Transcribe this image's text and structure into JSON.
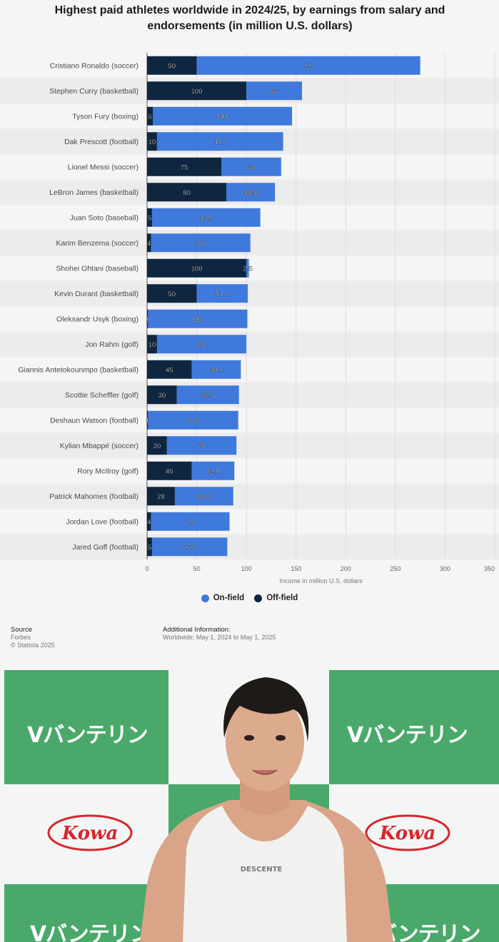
{
  "header": {
    "title": "Highest paid athletes worldwide in 2024/25, by earnings from salary and endorsements (in million U.S. dollars)"
  },
  "chart_data": {
    "type": "bar",
    "orientation": "horizontal",
    "stacked": true,
    "title": "Highest paid athletes worldwide in 2024/25, by earnings from salary and endorsements (in million U.S. dollars)",
    "xlabel": "Income in million U.S. dollars",
    "ylabel": "",
    "xlim": [
      0,
      350
    ],
    "xticks": [
      0,
      50,
      100,
      150,
      200,
      250,
      300,
      350
    ],
    "grid": true,
    "legend_position": "bottom",
    "categories": [
      "Cristiano Ronaldo (soccer)",
      "Stephen Curry (basketball)",
      "Tyson Fury (boxing)",
      "Dak Prescott (football)",
      "Lionel Messi (soccer)",
      "LeBron James (basketball)",
      "Juan Soto (baseball)",
      "Karim Benzema (soccer)",
      "Shohei Ohtani (baseball)",
      "Kevin Durant (basketball)",
      "Oleksandr Usyk (boxing)",
      "Jon Rahm (golf)",
      "Giannis Antetokounmpo (basketball)",
      "Scottie Scheffler (golf)",
      "Deshaun Watson (football)",
      "Kylian Mbappé (soccer)",
      "Rory McIlroy (golf)",
      "Patrick Mahomes (football)",
      "Jordan Love (football)",
      "Jared Goff (football)"
    ],
    "series": [
      {
        "name": "Off-field",
        "color": "#0f2640",
        "values": [
          50,
          100,
          6,
          10,
          75,
          80,
          5,
          4,
          100,
          50,
          1,
          10,
          45,
          30,
          1,
          20,
          45,
          28,
          4,
          5
        ],
        "labels": [
          "50",
          "100",
          "6",
          "10",
          "75",
          "80",
          "5",
          "4",
          "100",
          "50",
          "1",
          "10",
          "45",
          "30",
          "1",
          "20",
          "45",
          "28",
          "4",
          "5"
        ]
      },
      {
        "name": "On-field",
        "color": "#3f79dc",
        "values": [
          225,
          56,
          140,
          127,
          60,
          48.8,
          109,
          100,
          2.5,
          51.4,
          100,
          90,
          49.4,
          62.5,
          90.8,
          70,
          42.9,
          58.8,
          79,
          75.8
        ],
        "labels": [
          "225",
          "56",
          "140",
          "127",
          "60",
          "48.8",
          "109",
          "100",
          "2.5",
          "51.4",
          "100",
          "90",
          "49.4",
          "62.5",
          "90.8",
          "70",
          "42.9",
          "58.8",
          "79",
          "75.8"
        ]
      }
    ]
  },
  "legend": {
    "on_field": "On-field",
    "off_field": "Off-field"
  },
  "source": {
    "title": "Source",
    "name": "Forbes",
    "copyright": "© Statista 2025"
  },
  "additional_info": {
    "title": "Additional Information:",
    "text": "Worldwide; May 1, 2024 to May 1, 2025"
  },
  "photo": {
    "brand_text": "バンテリン",
    "kowa_text": "Kowa",
    "shirt_text": "DESCENTE"
  }
}
